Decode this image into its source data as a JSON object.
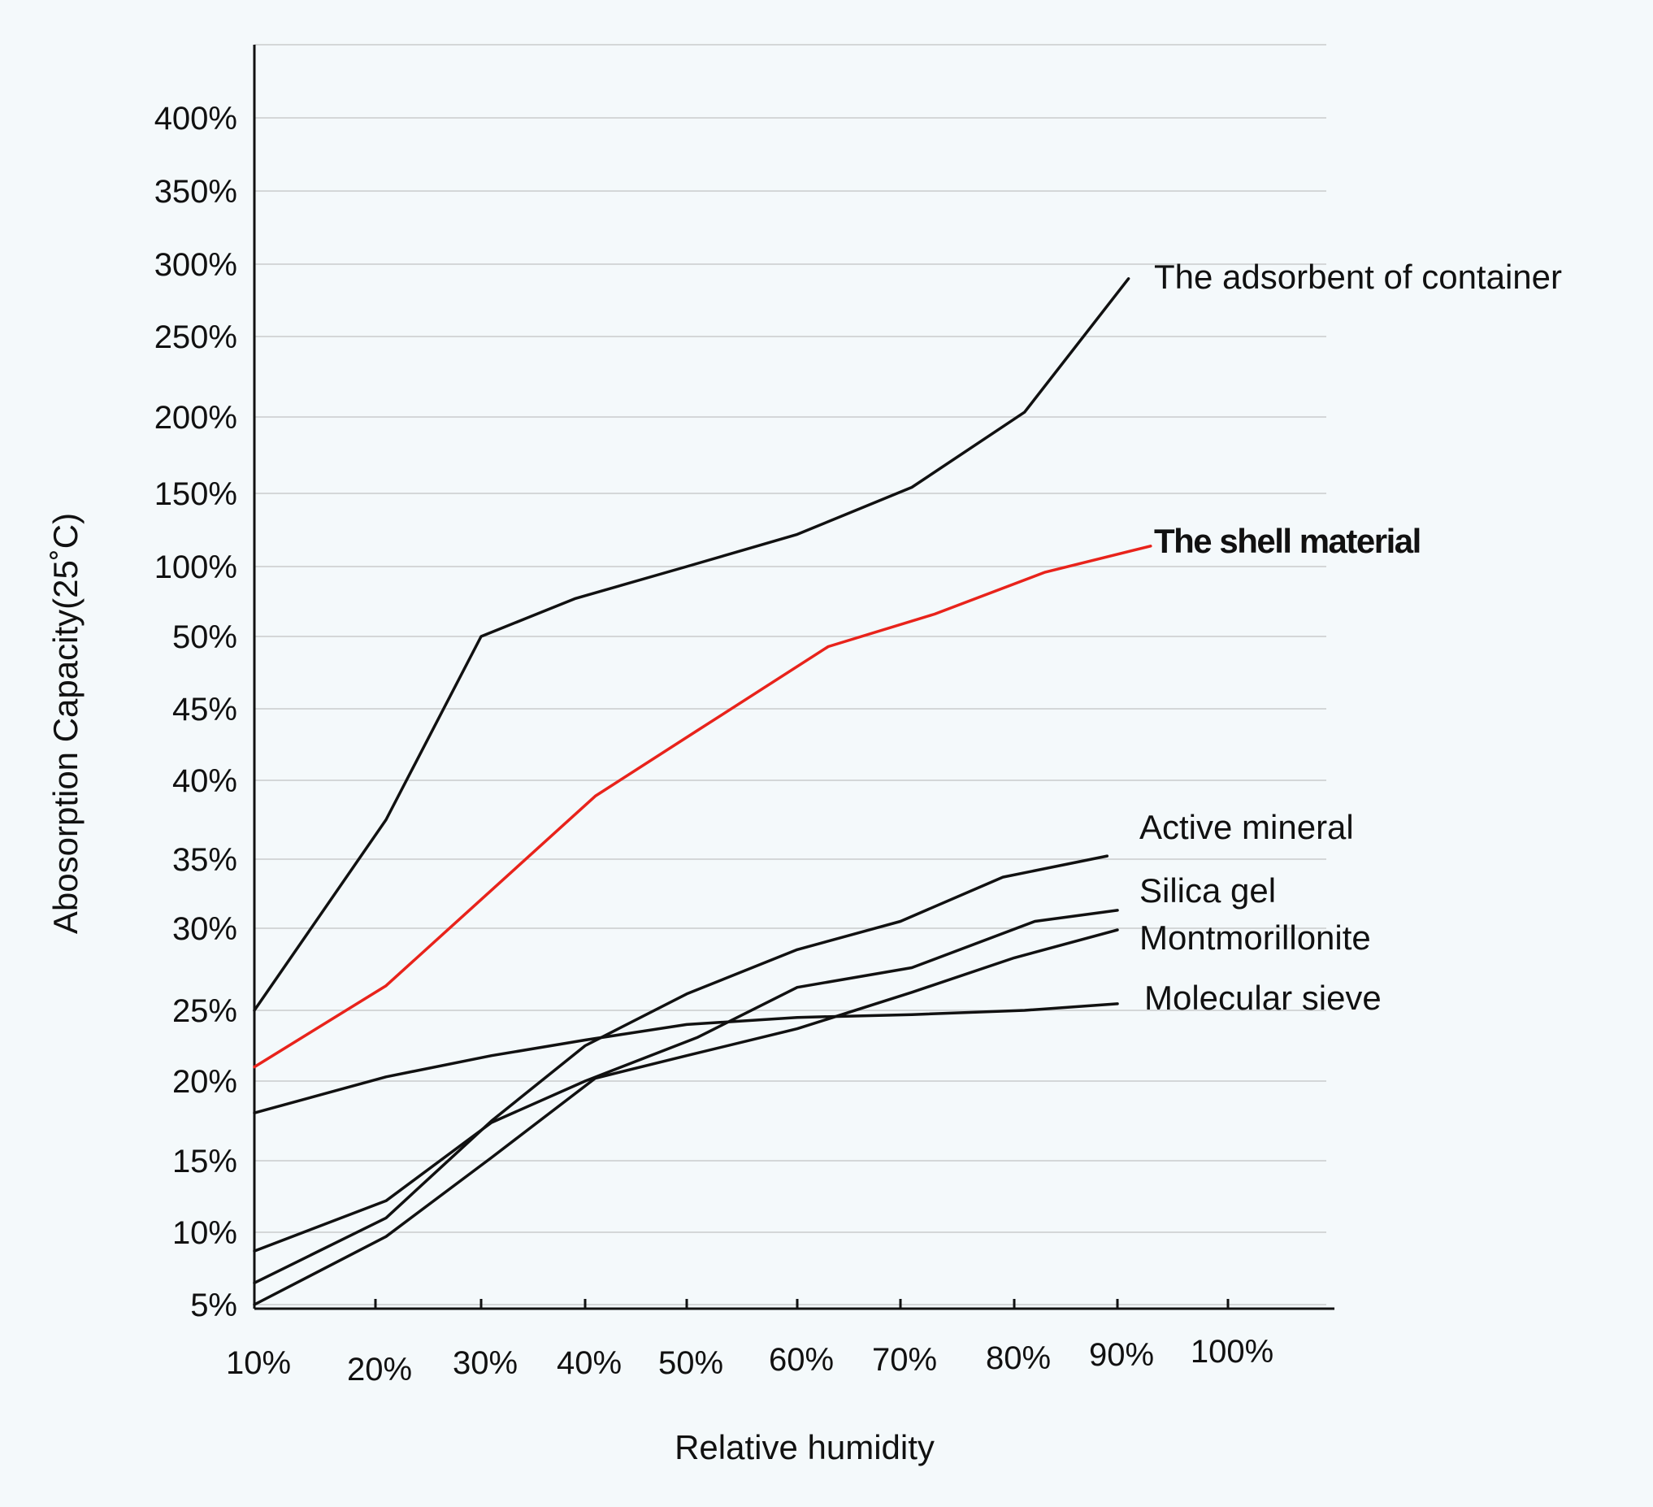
{
  "chart_data": {
    "type": "line",
    "xlabel": "Relative humidity",
    "ylabel": "Abosorption Capacity(25˚C)",
    "x_ticks": [
      "10%",
      "20%",
      "30%",
      "40%",
      "50%",
      "60%",
      "70%",
      "80%",
      "90%",
      "100%"
    ],
    "y_ticks": [
      "5%",
      "10%",
      "15%",
      "20%",
      "25%",
      "30%",
      "35%",
      "40%",
      "45%",
      "50%",
      "100%",
      "150%",
      "200%",
      "250%",
      "300%",
      "350%",
      "400%"
    ],
    "grid": true,
    "series": [
      {
        "name": "The adsorbent of container",
        "color": "#111111",
        "highlight": false,
        "x": [
          10,
          21,
          30,
          39,
          50,
          60,
          71,
          81,
          91
        ],
        "y": [
          25,
          37.5,
          50,
          77,
          100,
          122,
          154,
          203,
          290
        ]
      },
      {
        "name": "The shell material",
        "color": "#e8231b",
        "highlight": true,
        "x": [
          10,
          21,
          41,
          51,
          63,
          73,
          83,
          93
        ],
        "y": [
          21,
          26.5,
          39,
          43.5,
          49.3,
          66,
          96,
          114
        ]
      },
      {
        "name": "Active mineral",
        "color": "#111111",
        "highlight": false,
        "x": [
          10,
          21,
          31,
          40,
          50,
          60,
          70,
          79,
          89
        ],
        "y": [
          6.5,
          11,
          17.5,
          22.5,
          26,
          28.7,
          30.5,
          33.7,
          35.2
        ]
      },
      {
        "name": "Silica gel",
        "color": "#111111",
        "highlight": false,
        "x": [
          10,
          21,
          31,
          40,
          51,
          60,
          71,
          82,
          90
        ],
        "y": [
          8.7,
          12.2,
          17.4,
          20,
          23.1,
          26.4,
          27.6,
          30.5,
          31.3
        ]
      },
      {
        "name": "Montmorillonite",
        "color": "#111111",
        "highlight": false,
        "x": [
          10,
          21,
          31,
          41,
          50,
          60,
          71,
          80,
          90
        ],
        "y": [
          5,
          9.7,
          15.2,
          20.2,
          21.8,
          23.7,
          26.1,
          28.2,
          29.9
        ]
      },
      {
        "name": "Molecular sieve",
        "color": "#111111",
        "highlight": false,
        "x": [
          10,
          21,
          31,
          40,
          50,
          60,
          71,
          81,
          90
        ],
        "y": [
          18,
          20.3,
          21.8,
          22.9,
          24,
          24.5,
          24.7,
          25,
          25.4
        ]
      }
    ]
  }
}
